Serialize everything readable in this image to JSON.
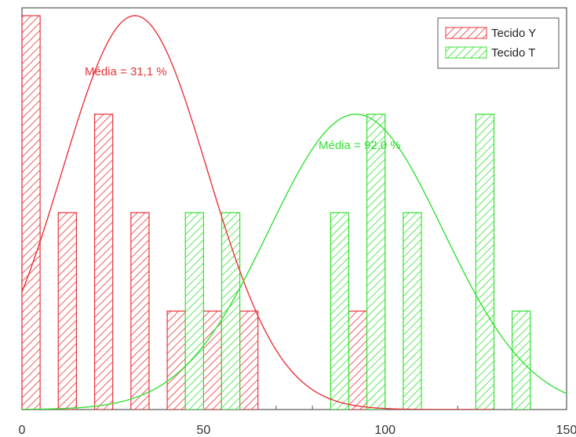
{
  "chart_data": {
    "type": "bar",
    "title": "",
    "xlabel": "",
    "ylabel": "",
    "xlim": [
      0,
      150
    ],
    "ylim": [
      0,
      4
    ],
    "x_ticks": [
      "0",
      "50",
      "100",
      "150"
    ],
    "grid": false,
    "legend_position": "top-right",
    "series": [
      {
        "name": "Tecido Y",
        "color": "#e8343a",
        "bins": [
          {
            "x0": 0,
            "x1": 5,
            "count": 4
          },
          {
            "x0": 10,
            "x1": 15,
            "count": 2
          },
          {
            "x0": 20,
            "x1": 25,
            "count": 3
          },
          {
            "x0": 30,
            "x1": 35,
            "count": 2
          },
          {
            "x0": 40,
            "x1": 45,
            "count": 1
          },
          {
            "x0": 45,
            "x1": 50,
            "count": 1
          },
          {
            "x0": 50,
            "x1": 55,
            "count": 1
          },
          {
            "x0": 55,
            "x1": 60,
            "count": 1
          },
          {
            "x0": 60,
            "x1": 65,
            "count": 1
          },
          {
            "x0": 90,
            "x1": 95,
            "count": 1
          }
        ],
        "fit_curve": {
          "mean": 31.1,
          "std": 20,
          "peak": 4,
          "x_end": 130
        },
        "annotation": "Média = 31,1 %"
      },
      {
        "name": "Tecido T",
        "color": "#35e035",
        "bins": [
          {
            "x0": 45,
            "x1": 50,
            "count": 2
          },
          {
            "x0": 55,
            "x1": 60,
            "count": 2
          },
          {
            "x0": 85,
            "x1": 90,
            "count": 2
          },
          {
            "x0": 95,
            "x1": 100,
            "count": 3
          },
          {
            "x0": 105,
            "x1": 110,
            "count": 2
          },
          {
            "x0": 125,
            "x1": 130,
            "count": 3
          },
          {
            "x0": 135,
            "x1": 140,
            "count": 1
          }
        ],
        "fit_curve": {
          "mean": 92.0,
          "std": 24,
          "peak": 3,
          "x_end": 150
        },
        "annotation": "Média = 92,0 %"
      }
    ]
  }
}
